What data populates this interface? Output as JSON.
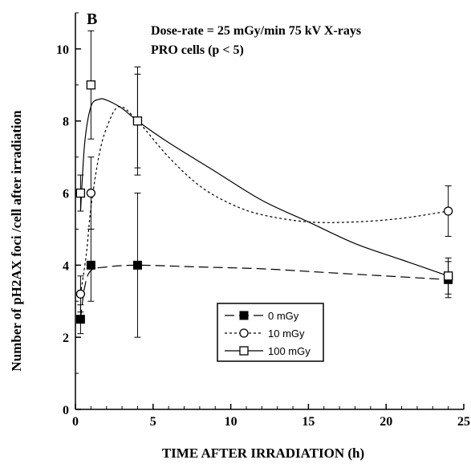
{
  "chart_data": {
    "type": "scatter",
    "panel_label": "B",
    "annotation_line1": "Dose-rate = 25 mGy/min 75 kV X-rays",
    "annotation_line2": "PRO cells (p < 5)",
    "xlabel": "TIME AFTER IRRADIATION  (h)",
    "ylabel": "Number of pH2AX foci /cell after irradiation",
    "xlim": [
      0,
      25
    ],
    "ylim": [
      0,
      11
    ],
    "xticks": [
      "0",
      "5",
      "10",
      "15",
      "20",
      "25"
    ],
    "yticks": [
      "0",
      "2",
      "4",
      "6",
      "8",
      "10"
    ],
    "grid": false,
    "legend_position": "lower-right inside plot",
    "series": [
      {
        "name": "0 mGy",
        "marker": "filled-square",
        "line": "long-dash",
        "points": [
          {
            "x": 0.33,
            "y": 2.5,
            "err_low": 2.1,
            "err_high": 2.9
          },
          {
            "x": 1,
            "y": 4.0,
            "err_low": 3.0,
            "err_high": 5.0
          },
          {
            "x": 4,
            "y": 4.0,
            "err_low": 2.0,
            "err_high": 6.0
          },
          {
            "x": 24,
            "y": 3.6,
            "err_low": 3.1,
            "err_high": 4.1
          }
        ],
        "curve": [
          [
            0.33,
            2.5
          ],
          [
            0.6,
            3.4
          ],
          [
            1,
            3.85
          ],
          [
            2,
            3.95
          ],
          [
            4,
            4.0
          ],
          [
            8,
            3.95
          ],
          [
            12,
            3.9
          ],
          [
            16,
            3.8
          ],
          [
            20,
            3.7
          ],
          [
            24,
            3.6
          ]
        ]
      },
      {
        "name": "10 mGy",
        "marker": "open-circle",
        "line": "short-dash",
        "points": [
          {
            "x": 0.33,
            "y": 3.2,
            "err_low": 2.7,
            "err_high": 3.7
          },
          {
            "x": 1,
            "y": 6.0,
            "err_low": 5.0,
            "err_high": 7.0
          },
          {
            "x": 4,
            "y": 8.0,
            "err_low": 6.5,
            "err_high": 9.5
          },
          {
            "x": 24,
            "y": 5.5,
            "err_low": 4.8,
            "err_high": 6.2
          }
        ],
        "curve": [
          [
            0.33,
            3.2
          ],
          [
            0.7,
            4.3
          ],
          [
            1,
            5.6
          ],
          [
            1.5,
            7.0
          ],
          [
            2,
            7.8
          ],
          [
            2.8,
            8.4
          ],
          [
            4,
            8.0
          ],
          [
            6,
            7.0
          ],
          [
            8,
            6.2
          ],
          [
            10,
            5.7
          ],
          [
            12,
            5.4
          ],
          [
            15,
            5.2
          ],
          [
            18,
            5.2
          ],
          [
            21,
            5.3
          ],
          [
            24,
            5.5
          ]
        ]
      },
      {
        "name": "100 mGy",
        "marker": "open-square",
        "line": "solid",
        "points": [
          {
            "x": 0.33,
            "y": 6.0,
            "err_low": 5.5,
            "err_high": 6.5
          },
          {
            "x": 1,
            "y": 9.0,
            "err_low": 7.5,
            "err_high": 10.5
          },
          {
            "x": 4,
            "y": 8.0,
            "err_low": 6.7,
            "err_high": 9.3
          },
          {
            "x": 24,
            "y": 3.7,
            "err_low": 3.2,
            "err_high": 4.2
          }
        ],
        "curve": [
          [
            0.33,
            5.5
          ],
          [
            0.6,
            7.4
          ],
          [
            1,
            8.4
          ],
          [
            1.5,
            8.6
          ],
          [
            2,
            8.58
          ],
          [
            3,
            8.35
          ],
          [
            4,
            8.0
          ],
          [
            6,
            7.4
          ],
          [
            9,
            6.6
          ],
          [
            12,
            5.8
          ],
          [
            15,
            5.2
          ],
          [
            18,
            4.6
          ],
          [
            21,
            4.15
          ],
          [
            24,
            3.7
          ]
        ]
      }
    ]
  },
  "colors": {
    "ink": "#000000",
    "background": "#ffffff"
  }
}
